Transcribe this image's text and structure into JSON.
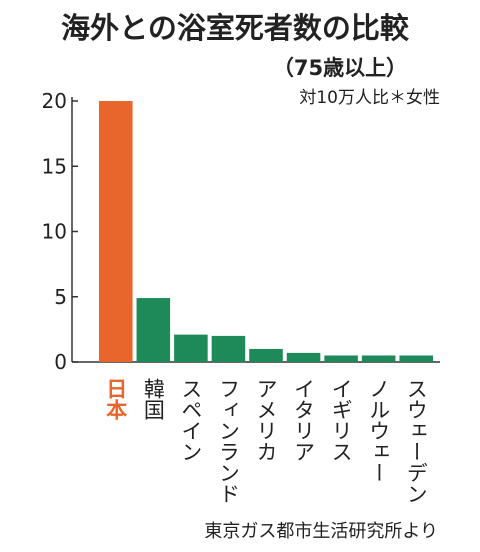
{
  "chart_data": {
    "type": "bar",
    "title": "海外との浴室死者数の比較",
    "subtitle": "（75歳以上）",
    "unit_note": "対10万人比＊女性",
    "categories": [
      "日本",
      "韓国",
      "スペイン",
      "フィンランド",
      "アメリカ",
      "イタリア",
      "イギリス",
      "ノルウェー",
      "スウェーデン"
    ],
    "values": [
      20.0,
      4.9,
      2.1,
      2.0,
      1.0,
      0.7,
      0.5,
      0.5,
      0.5
    ],
    "y_ticks": [
      "0",
      "5",
      "10",
      "15",
      "20"
    ],
    "ylim": [
      0,
      20
    ],
    "grid": false,
    "source": "東京ガス都市生活研究所より",
    "colors": {
      "highlight": "#e8652c",
      "bar": "#1e8a5a",
      "highlight_label": "#e8652c",
      "label": "#222222",
      "axis": "#333333"
    },
    "highlight_index": 0
  }
}
